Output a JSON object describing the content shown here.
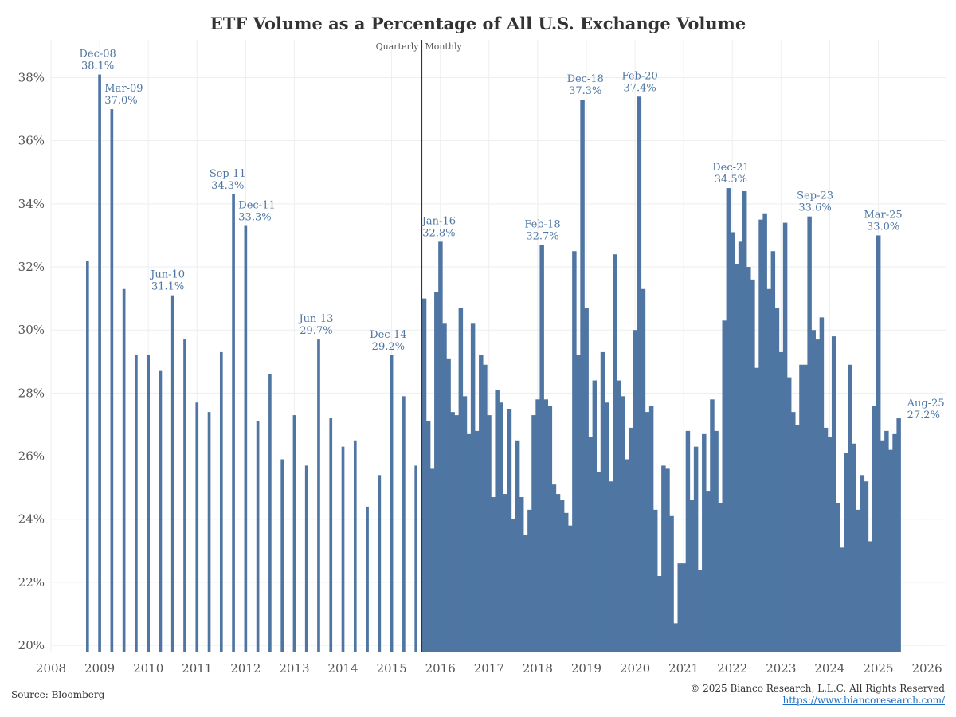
{
  "colors": {
    "bar": "#4f76a3",
    "annotation": "#4f76a3",
    "grid": "#eeeeee",
    "text": "#555555",
    "divider": "#333333"
  },
  "footer": {
    "source": "Source: Bloomberg",
    "copyright": "© 2025 Bianco Research, L.L.C. All Rights Reserved",
    "url": "https://www.biancoresearch.com/"
  },
  "chart_data": {
    "type": "bar",
    "title": "ETF Volume as a Percentage of All U.S. Exchange Volume",
    "xlabel": "",
    "ylabel": "",
    "xlim": [
      2008.0,
      2026.4
    ],
    "ylim": [
      19.8,
      39.2
    ],
    "yticks": [
      20,
      22,
      24,
      26,
      28,
      30,
      32,
      34,
      36,
      38
    ],
    "ytick_suffix": "%",
    "xticks": [
      2008,
      2009,
      2010,
      2011,
      2012,
      2013,
      2014,
      2015,
      2016,
      2017,
      2018,
      2019,
      2020,
      2021,
      2022,
      2023,
      2024,
      2025,
      2026
    ],
    "divider": {
      "x": 2015.62,
      "left_label": "Quarterly",
      "right_label": "Monthly"
    },
    "quarterly": {
      "start": 2008.75,
      "step": 0.25,
      "values": [
        32.2,
        38.1,
        37.0,
        31.3,
        29.2,
        29.2,
        28.7,
        31.1,
        29.7,
        27.7,
        27.4,
        29.3,
        34.3,
        33.3,
        27.1,
        28.6,
        25.9,
        27.3,
        25.7,
        29.7,
        27.2,
        26.3,
        26.5,
        24.4,
        25.4,
        29.2,
        27.9,
        25.7
      ]
    },
    "monthly": {
      "start": 2015.67,
      "step": 0.0833333,
      "values": [
        31.0,
        27.1,
        25.6,
        31.2,
        32.8,
        30.2,
        29.1,
        27.4,
        27.3,
        30.7,
        27.9,
        26.7,
        30.2,
        26.8,
        29.2,
        28.9,
        27.3,
        24.7,
        28.1,
        27.7,
        24.8,
        27.5,
        24.0,
        26.5,
        24.7,
        23.5,
        24.3,
        27.3,
        27.8,
        32.7,
        27.8,
        27.6,
        25.1,
        24.8,
        24.6,
        24.2,
        23.8,
        32.5,
        29.2,
        37.3,
        30.7,
        26.6,
        28.4,
        25.5,
        29.3,
        27.7,
        25.2,
        32.4,
        28.4,
        27.9,
        25.9,
        26.9,
        30.0,
        37.4,
        31.3,
        27.4,
        27.6,
        24.3,
        22.2,
        25.7,
        25.6,
        24.1,
        20.7,
        22.6,
        22.6,
        26.8,
        24.6,
        26.3,
        22.4,
        26.7,
        24.9,
        27.8,
        26.8,
        24.5,
        30.3,
        34.5,
        33.1,
        32.1,
        32.8,
        34.4,
        32.0,
        31.6,
        28.8,
        33.5,
        33.7,
        31.3,
        32.5,
        30.7,
        29.3,
        33.4,
        28.5,
        27.4,
        27.0,
        28.9,
        28.9,
        33.6,
        30.0,
        29.7,
        30.4,
        26.9,
        26.6,
        29.8,
        24.5,
        23.1,
        26.1,
        28.9,
        26.4,
        24.3,
        25.4,
        25.2,
        23.3,
        27.6,
        33.0,
        26.5,
        26.8,
        26.2,
        26.7,
        27.2
      ]
    },
    "annotations": [
      {
        "label": "Dec-08",
        "value": "38.1%",
        "x": 2008.96,
        "y": 38.1,
        "align": "center"
      },
      {
        "label": "Mar-09",
        "value": "37.0%",
        "x": 2009.2,
        "y": 37.0,
        "align": "start"
      },
      {
        "label": "Jun-10",
        "value": "31.1%",
        "x": 2010.4,
        "y": 31.1,
        "align": "center"
      },
      {
        "label": "Sep-11",
        "value": "34.3%",
        "x": 2011.63,
        "y": 34.3,
        "align": "center"
      },
      {
        "label": "Dec-11",
        "value": "33.3%",
        "x": 2011.95,
        "y": 33.3,
        "align": "start"
      },
      {
        "label": "Jun-13",
        "value": "29.7%",
        "x": 2013.45,
        "y": 29.7,
        "align": "center"
      },
      {
        "label": "Dec-14",
        "value": "29.2%",
        "x": 2014.93,
        "y": 29.2,
        "align": "center"
      },
      {
        "label": "Jan-16",
        "value": "32.8%",
        "x": 2015.97,
        "y": 32.8,
        "align": "center"
      },
      {
        "label": "Feb-18",
        "value": "32.7%",
        "x": 2018.1,
        "y": 32.7,
        "align": "center"
      },
      {
        "label": "Dec-18",
        "value": "37.3%",
        "x": 2018.98,
        "y": 37.3,
        "align": "center"
      },
      {
        "label": "Feb-20",
        "value": "37.4%",
        "x": 2020.1,
        "y": 37.4,
        "align": "center"
      },
      {
        "label": "Dec-21",
        "value": "34.5%",
        "x": 2021.97,
        "y": 34.5,
        "align": "center"
      },
      {
        "label": "Sep-23",
        "value": "33.6%",
        "x": 2023.7,
        "y": 33.6,
        "align": "center"
      },
      {
        "label": "Mar-25",
        "value": "33.0%",
        "x": 2025.1,
        "y": 33.0,
        "align": "center"
      },
      {
        "label": "Aug-25",
        "value": "27.2%",
        "x": 2025.69,
        "y": 27.2,
        "align": "start"
      }
    ]
  }
}
